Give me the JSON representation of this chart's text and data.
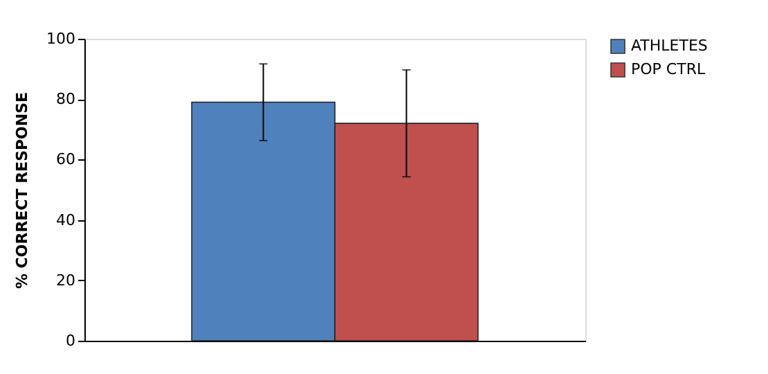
{
  "chart_data": {
    "type": "bar",
    "ylabel": "% CORRECT RESPONSE",
    "categories": [
      null
    ],
    "series": [
      {
        "name": "ATHLETES",
        "color": "#4f81bd",
        "values": [
          79
        ],
        "errors": [
          12.7
        ]
      },
      {
        "name": "POP CTRL",
        "color": "#c0504d",
        "values": [
          72
        ],
        "errors": [
          17.7
        ]
      }
    ],
    "ylim": [
      0,
      100
    ],
    "yticks": [
      0,
      20,
      40,
      60,
      80,
      100
    ],
    "grid": false,
    "legend": "right"
  }
}
